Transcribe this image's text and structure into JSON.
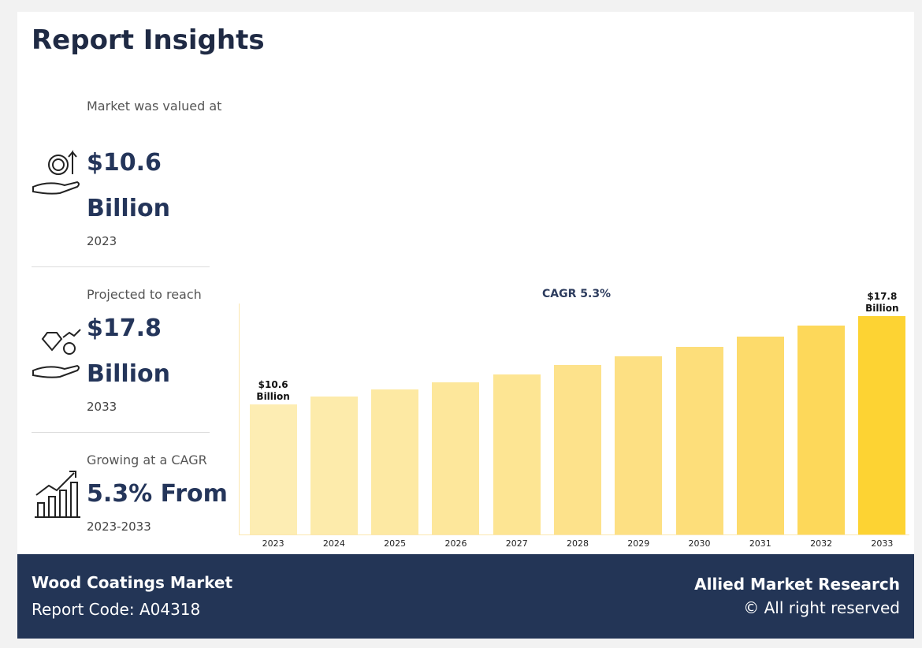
{
  "header": {
    "title": "Report Insights"
  },
  "stats": [
    {
      "label": "Market was valued at",
      "value": "$10.6 Billion",
      "note": "2023"
    },
    {
      "label": "Projected to reach",
      "value": "$17.8 Billion",
      "note": "2033"
    },
    {
      "label": "Growing at a CAGR",
      "value": "5.3% From",
      "note": "2023-2033"
    }
  ],
  "chart_data": {
    "type": "bar",
    "annotation": "CAGR 5.3%",
    "categories": [
      "2023",
      "2024",
      "2025",
      "2026",
      "2027",
      "2028",
      "2029",
      "2030",
      "2031",
      "2032",
      "2033"
    ],
    "values": [
      10.6,
      11.2,
      11.8,
      12.4,
      13.0,
      13.8,
      14.5,
      15.3,
      16.1,
      17.0,
      17.8
    ],
    "value_labels": [
      "$10.6 Billion",
      null,
      null,
      null,
      null,
      null,
      null,
      null,
      null,
      null,
      "$17.8 Billion"
    ],
    "colors": [
      "#fdedb3",
      "#fdebab",
      "#fde9a3",
      "#fde79b",
      "#fde593",
      "#fde28b",
      "#fde083",
      "#fdde7a",
      "#fddb6b",
      "#fdd85a",
      "#fdd333"
    ],
    "ylim": [
      0,
      18.8
    ]
  },
  "footer": {
    "market": "Wood Coatings Market",
    "code": "Report Code: A04318",
    "brand": "Allied Market Research",
    "rights": "© All right reserved"
  }
}
